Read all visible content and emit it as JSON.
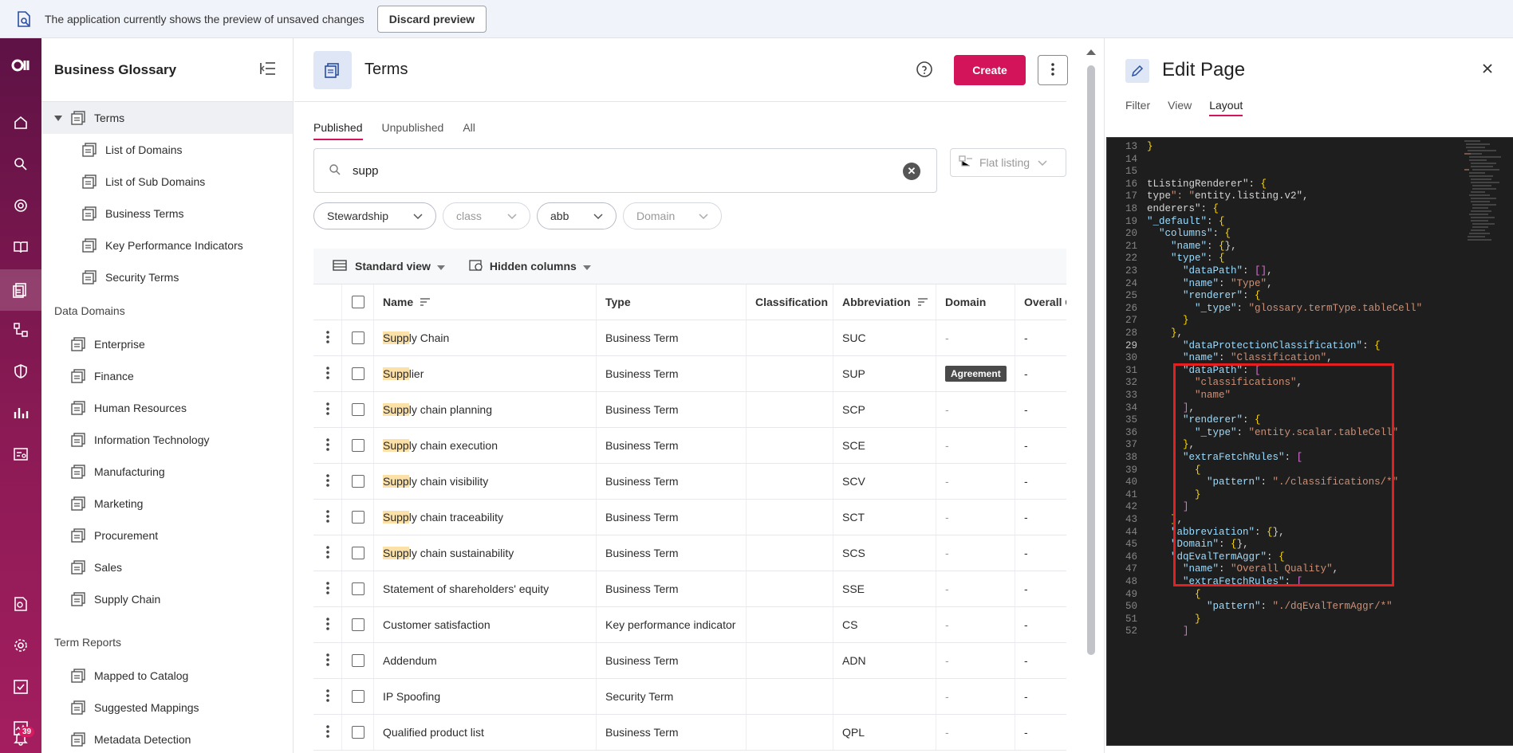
{
  "banner": {
    "message": "The application currently shows the preview of unsaved changes",
    "button_label": "Discard preview"
  },
  "rail": {
    "notification_count": "39"
  },
  "sidebar": {
    "title": "Business Glossary",
    "terms_root": "Terms",
    "terms_children": [
      "List of Domains",
      "List of Sub Domains",
      "Business Terms",
      "Key Performance Indicators",
      "Security Terms"
    ],
    "data_domains_label": "Data Domains",
    "data_domains": [
      "Enterprise",
      "Finance",
      "Human Resources",
      "Information Technology",
      "Manufacturing",
      "Marketing",
      "Procurement",
      "Sales",
      "Supply Chain"
    ],
    "term_reports_label": "Term Reports",
    "term_reports": [
      "Mapped to Catalog",
      "Suggested Mappings",
      "Metadata Detection"
    ]
  },
  "main": {
    "title": "Terms",
    "create_label": "Create",
    "tabs": [
      "Published",
      "Unpublished",
      "All"
    ],
    "search_value": "supp",
    "flat_listing_label": "Flat listing",
    "filters": [
      {
        "label": "Stewardship",
        "placeholder": false
      },
      {
        "label": "class",
        "placeholder": true
      },
      {
        "label": "abb",
        "placeholder": false
      },
      {
        "label": "Domain",
        "placeholder": true
      }
    ],
    "standard_view_label": "Standard view",
    "hidden_columns_label": "Hidden columns",
    "columns": [
      "Name",
      "Type",
      "Classification",
      "Abbreviation",
      "Domain",
      "Overall Quality"
    ],
    "rows": [
      {
        "hl": "Supp",
        "rest": "ly Chain",
        "type": "Business Term",
        "classification": "",
        "abbr": "SUC",
        "domain": "-",
        "quality": "-"
      },
      {
        "hl": "Supp",
        "rest": "lier",
        "type": "Business Term",
        "classification": "",
        "abbr": "SUP",
        "domain": "Agreement",
        "quality": "-"
      },
      {
        "hl": "Supp",
        "rest": "ly chain planning",
        "type": "Business Term",
        "classification": "",
        "abbr": "SCP",
        "domain": "-",
        "quality": "-"
      },
      {
        "hl": "Supp",
        "rest": "ly chain execution",
        "type": "Business Term",
        "classification": "",
        "abbr": "SCE",
        "domain": "-",
        "quality": "-"
      },
      {
        "hl": "Supp",
        "rest": "ly chain visibility",
        "type": "Business Term",
        "classification": "",
        "abbr": "SCV",
        "domain": "-",
        "quality": "-"
      },
      {
        "hl": "Supp",
        "rest": "ly chain traceability",
        "type": "Business Term",
        "classification": "",
        "abbr": "SCT",
        "domain": "-",
        "quality": "-"
      },
      {
        "hl": "Supp",
        "rest": "ly chain sustainability",
        "type": "Business Term",
        "classification": "",
        "abbr": "SCS",
        "domain": "-",
        "quality": "-"
      },
      {
        "hl": "",
        "rest": "Statement of shareholders' equity",
        "type": "Business Term",
        "classification": "",
        "abbr": "SSE",
        "domain": "-",
        "quality": "-"
      },
      {
        "hl": "",
        "rest": "Customer satisfaction",
        "type": "Key performance indicator",
        "classification": "",
        "abbr": "CS",
        "domain": "-",
        "quality": "-"
      },
      {
        "hl": "",
        "rest": "Addendum",
        "type": "Business Term",
        "classification": "",
        "abbr": "ADN",
        "domain": "-",
        "quality": "-"
      },
      {
        "hl": "",
        "rest": "IP Spoofing",
        "type": "Security Term",
        "classification": "",
        "abbr": "",
        "domain": "-",
        "quality": "-"
      },
      {
        "hl": "",
        "rest": "Qualified product list",
        "type": "Business Term",
        "classification": "",
        "abbr": "QPL",
        "domain": "-",
        "quality": "-"
      }
    ]
  },
  "panel": {
    "title": "Edit Page",
    "tabs": [
      "Filter",
      "View",
      "Layout"
    ],
    "active_tab": "Layout",
    "current_line": 29,
    "code_lines": [
      {
        "n": 13,
        "t": "}"
      },
      {
        "n": 14,
        "t": ""
      },
      {
        "n": 15,
        "t": ""
      },
      {
        "n": 16,
        "t": "tListingRenderer\": {"
      },
      {
        "n": 17,
        "t": "type\": \"entity.listing.v2\","
      },
      {
        "n": 18,
        "t": "enderers\": {"
      },
      {
        "n": 19,
        "t": "\"_default\": {"
      },
      {
        "n": 20,
        "t": "  \"columns\": {"
      },
      {
        "n": 21,
        "t": "    \"name\": {},"
      },
      {
        "n": 22,
        "t": "    \"type\": {"
      },
      {
        "n": 23,
        "t": "      \"dataPath\": [],"
      },
      {
        "n": 24,
        "t": "      \"name\": \"Type\","
      },
      {
        "n": 25,
        "t": "      \"renderer\": {"
      },
      {
        "n": 26,
        "t": "        \"_type\": \"glossary.termType.tableCell\""
      },
      {
        "n": 27,
        "t": "      }"
      },
      {
        "n": 28,
        "t": "    },"
      },
      {
        "n": 29,
        "t": "      \"dataProtectionClassification\": {"
      },
      {
        "n": 30,
        "t": "      \"name\": \"Classification\","
      },
      {
        "n": 31,
        "t": "      \"dataPath\": ["
      },
      {
        "n": 32,
        "t": "        \"classifications\","
      },
      {
        "n": 33,
        "t": "        \"name\""
      },
      {
        "n": 34,
        "t": "      ],"
      },
      {
        "n": 35,
        "t": "      \"renderer\": {"
      },
      {
        "n": 36,
        "t": "        \"_type\": \"entity.scalar.tableCell\""
      },
      {
        "n": 37,
        "t": "      },"
      },
      {
        "n": 38,
        "t": "      \"extraFetchRules\": ["
      },
      {
        "n": 39,
        "t": "        {"
      },
      {
        "n": 40,
        "t": "          \"pattern\": \"./classifications/*\""
      },
      {
        "n": 41,
        "t": "        }"
      },
      {
        "n": 42,
        "t": "      ]"
      },
      {
        "n": 43,
        "t": "    },"
      },
      {
        "n": 44,
        "t": "    \"abbreviation\": {},"
      },
      {
        "n": 45,
        "t": "    \"Domain\": {},"
      },
      {
        "n": 46,
        "t": "    \"dqEvalTermAggr\": {"
      },
      {
        "n": 47,
        "t": "      \"name\": \"Overall Quality\","
      },
      {
        "n": 48,
        "t": "      \"extraFetchRules\": ["
      },
      {
        "n": 49,
        "t": "        {"
      },
      {
        "n": 50,
        "t": "          \"pattern\": \"./dqEvalTermAggr/*\""
      },
      {
        "n": 51,
        "t": "        }"
      },
      {
        "n": 52,
        "t": "      ]"
      }
    ]
  },
  "colors": {
    "accent": "#d4145a",
    "rail_top": "#5e1245",
    "rail_bottom": "#a41e5f",
    "highlight": "#fbe0a8",
    "editor_bg": "#1e1e1e",
    "annotation_box": "#e31f1f"
  },
  "icons": [
    "preview-doc-icon",
    "logo-icon",
    "home-icon",
    "search-icon",
    "target-icon",
    "book-icon",
    "glossary-icon",
    "lineage-icon",
    "shield-icon",
    "reports-icon",
    "data-quality-icon",
    "audit-icon",
    "gear-icon",
    "tasks-icon",
    "monitor-icon",
    "bell-icon",
    "collapse-menu-icon",
    "term-folder-icon",
    "help-icon",
    "kebab-icon",
    "close-icon",
    "edit-icon",
    "chevron-down-icon",
    "sort-icon",
    "table-view-icon",
    "hidden-columns-icon"
  ]
}
